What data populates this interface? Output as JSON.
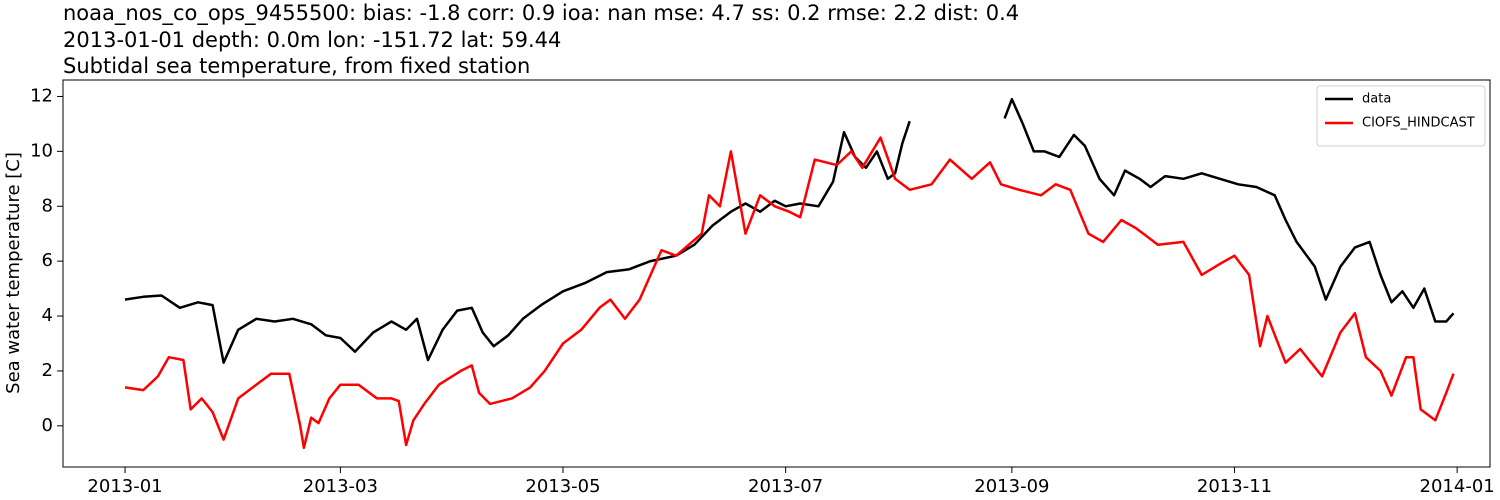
{
  "chart_data": {
    "type": "line",
    "title": "noaa_nos_co_ops_9455500: bias: -1.8  corr: 0.9  ioa: nan  mse: 4.7  ss: 0.2  rmse: 2.2  dist: 0.4",
    "subtitle": "2013-01-01 depth: 0.0m lon: -151.72 lat: 59.44",
    "subtitle2": "Subtidal sea temperature, from fixed station",
    "y_label": "Sea water temperature [C]",
    "xlim": [
      "2012-12-15",
      "2014-01-10"
    ],
    "ylim": [
      -1.5,
      12.6
    ],
    "xticks": [
      {
        "value": "2013-01-01",
        "label": "2013-01"
      },
      {
        "value": "2013-03-01",
        "label": "2013-03"
      },
      {
        "value": "2013-05-01",
        "label": "2013-05"
      },
      {
        "value": "2013-07-01",
        "label": "2013-07"
      },
      {
        "value": "2013-09-01",
        "label": "2013-09"
      },
      {
        "value": "2013-11-01",
        "label": "2013-11"
      },
      {
        "value": "2014-01-01",
        "label": "2014-01"
      }
    ],
    "yticks": [
      0,
      2,
      4,
      6,
      8,
      10,
      12
    ],
    "legend": "upper right",
    "series": [
      {
        "name": "data",
        "color": "#000000",
        "x": [
          "2013-01-01",
          "2013-01-06",
          "2013-01-11",
          "2013-01-16",
          "2013-01-21",
          "2013-01-25",
          "2013-01-28",
          "2013-02-01",
          "2013-02-06",
          "2013-02-11",
          "2013-02-16",
          "2013-02-21",
          "2013-02-25",
          "2013-03-01",
          "2013-03-05",
          "2013-03-10",
          "2013-03-15",
          "2013-03-19",
          "2013-03-22",
          "2013-03-25",
          "2013-03-29",
          "2013-04-02",
          "2013-04-06",
          "2013-04-09",
          "2013-04-12",
          "2013-04-16",
          "2013-04-20",
          "2013-04-25",
          "2013-05-01",
          "2013-05-07",
          "2013-05-13",
          "2013-05-19",
          "2013-05-25",
          "2013-06-01",
          "2013-06-06",
          "2013-06-11",
          "2013-06-16",
          "2013-06-20",
          "2013-06-24",
          "2013-06-28",
          "2013-07-01",
          "2013-07-05",
          "2013-07-10",
          "2013-07-14",
          "2013-07-17",
          "2013-07-20",
          "2013-07-23",
          "2013-07-26",
          "2013-07-29",
          "2013-07-31",
          "2013-08-02",
          "2013-08-04",
          "2013-08-20",
          "2013-08-30",
          "2013-09-01",
          "2013-09-04",
          "2013-09-07",
          "2013-09-10",
          "2013-09-14",
          "2013-09-18",
          "2013-09-21",
          "2013-09-25",
          "2013-09-29",
          "2013-10-02",
          "2013-10-06",
          "2013-10-09",
          "2013-10-13",
          "2013-10-18",
          "2013-10-23",
          "2013-10-28",
          "2013-11-02",
          "2013-11-07",
          "2013-11-12",
          "2013-11-15",
          "2013-11-18",
          "2013-11-23",
          "2013-11-26",
          "2013-11-30",
          "2013-12-04",
          "2013-12-08",
          "2013-12-11",
          "2013-12-14",
          "2013-12-17",
          "2013-12-20",
          "2013-12-23",
          "2013-12-26",
          "2013-12-29",
          "2013-12-31"
        ],
        "values": [
          4.6,
          4.7,
          4.75,
          4.3,
          4.5,
          4.4,
          2.3,
          3.5,
          3.9,
          3.8,
          3.9,
          3.7,
          3.3,
          3.2,
          2.7,
          3.4,
          3.8,
          3.5,
          3.9,
          2.4,
          3.5,
          4.2,
          4.3,
          3.4,
          2.9,
          3.3,
          3.9,
          4.4,
          4.9,
          5.2,
          5.6,
          5.7,
          6.0,
          6.2,
          6.6,
          7.3,
          7.8,
          8.1,
          7.8,
          8.2,
          8.0,
          8.1,
          8.0,
          8.9,
          10.7,
          9.8,
          9.4,
          10.0,
          9.0,
          9.2,
          10.3,
          11.1,
          null,
          11.2,
          11.9,
          11.0,
          10.0,
          10.0,
          9.8,
          10.6,
          10.2,
          9.0,
          8.4,
          9.3,
          9.0,
          8.7,
          9.1,
          9.0,
          9.2,
          9.0,
          8.8,
          8.7,
          8.4,
          7.5,
          6.7,
          5.8,
          4.6,
          5.8,
          6.5,
          6.7,
          5.5,
          4.5,
          4.9,
          4.3,
          5.0,
          3.8,
          3.8,
          4.1
        ]
      },
      {
        "name": "CIOFS_HINDCAST",
        "color": "#ff0000",
        "x": [
          "2013-01-01",
          "2013-01-06",
          "2013-01-10",
          "2013-01-13",
          "2013-01-17",
          "2013-01-19",
          "2013-01-22",
          "2013-01-25",
          "2013-01-28",
          "2013-02-01",
          "2013-02-07",
          "2013-02-10",
          "2013-02-15",
          "2013-02-18",
          "2013-02-19",
          "2013-02-21",
          "2013-02-23",
          "2013-02-26",
          "2013-03-01",
          "2013-03-06",
          "2013-03-11",
          "2013-03-15",
          "2013-03-17",
          "2013-03-19",
          "2013-03-21",
          "2013-03-24",
          "2013-03-28",
          "2013-04-03",
          "2013-04-06",
          "2013-04-08",
          "2013-04-11",
          "2013-04-17",
          "2013-04-22",
          "2013-04-26",
          "2013-05-01",
          "2013-05-06",
          "2013-05-11",
          "2013-05-14",
          "2013-05-18",
          "2013-05-22",
          "2013-05-28",
          "2013-06-01",
          "2013-06-08",
          "2013-06-10",
          "2013-06-13",
          "2013-06-16",
          "2013-06-20",
          "2013-06-24",
          "2013-06-28",
          "2013-07-02",
          "2013-07-05",
          "2013-07-09",
          "2013-07-15",
          "2013-07-19",
          "2013-07-22",
          "2013-07-27",
          "2013-07-31",
          "2013-08-04",
          "2013-08-10",
          "2013-08-15",
          "2013-08-21",
          "2013-08-26",
          "2013-08-29",
          "2013-09-03",
          "2013-09-09",
          "2013-09-13",
          "2013-09-17",
          "2013-09-22",
          "2013-09-26",
          "2013-10-01",
          "2013-10-05",
          "2013-10-11",
          "2013-10-18",
          "2013-10-23",
          "2013-10-28",
          "2013-11-01",
          "2013-11-05",
          "2013-11-08",
          "2013-11-10",
          "2013-11-15",
          "2013-11-19",
          "2013-11-25",
          "2013-11-30",
          "2013-12-04",
          "2013-12-07",
          "2013-12-11",
          "2013-12-14",
          "2013-12-18",
          "2013-12-20",
          "2013-12-22",
          "2013-12-26",
          "2013-12-29",
          "2013-12-31"
        ],
        "values": [
          1.4,
          1.3,
          1.8,
          2.5,
          2.4,
          0.6,
          1.0,
          0.5,
          -0.5,
          1.0,
          1.6,
          1.9,
          1.9,
          0.0,
          -0.8,
          0.3,
          0.1,
          1.0,
          1.5,
          1.5,
          1.0,
          1.0,
          0.9,
          -0.7,
          0.2,
          0.8,
          1.5,
          2.0,
          2.2,
          1.2,
          0.8,
          1.0,
          1.4,
          2.0,
          3.0,
          3.5,
          4.3,
          4.6,
          3.9,
          4.6,
          6.4,
          6.2,
          7.0,
          8.4,
          8.0,
          10.0,
          7.0,
          8.4,
          8.0,
          7.8,
          7.6,
          9.7,
          9.5,
          10.0,
          9.4,
          10.5,
          9.0,
          8.6,
          8.8,
          9.7,
          9.0,
          9.6,
          8.8,
          8.6,
          8.4,
          8.8,
          8.6,
          7.0,
          6.7,
          7.5,
          7.2,
          6.6,
          6.7,
          5.5,
          5.9,
          6.2,
          5.5,
          2.9,
          4.0,
          2.3,
          2.8,
          1.8,
          3.4,
          4.1,
          2.5,
          2.0,
          1.1,
          2.5,
          2.5,
          0.6,
          0.2,
          1.2,
          1.9
        ]
      }
    ]
  }
}
